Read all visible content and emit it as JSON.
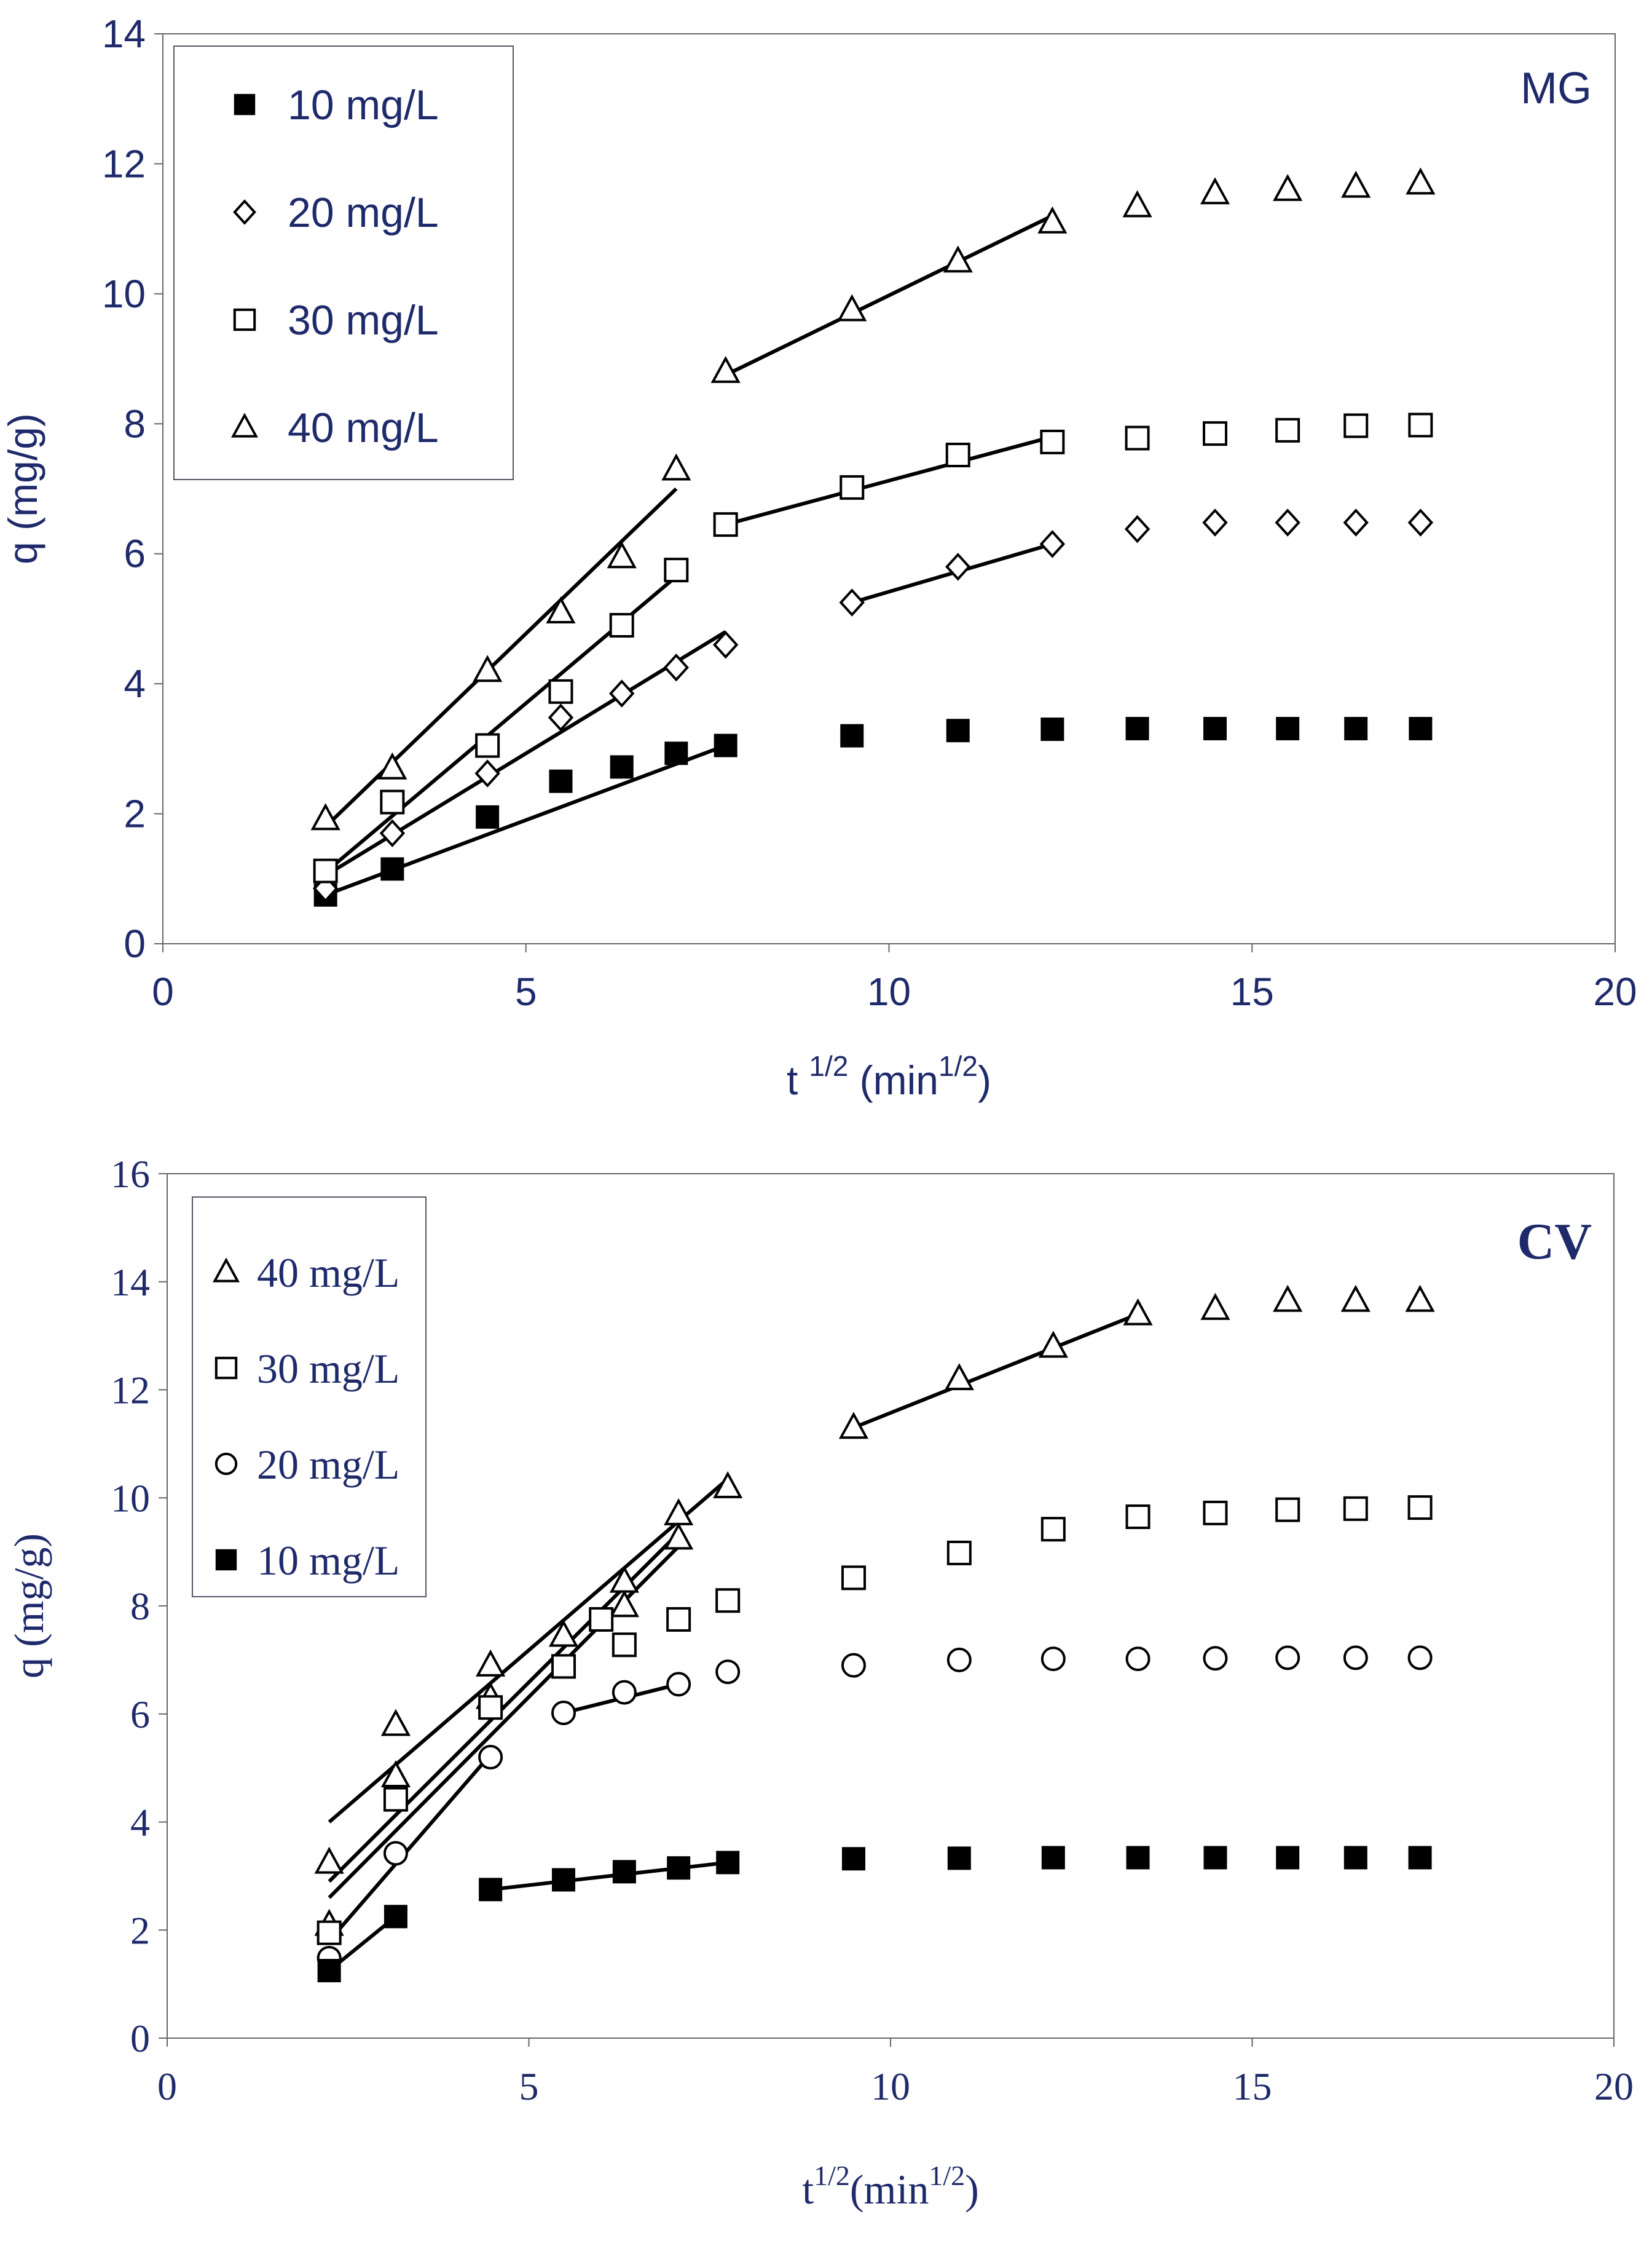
{
  "chart_data": [
    {
      "type": "scatter",
      "title": "MG",
      "xlabel_base": "t",
      "xlabel_sup": "1/2",
      "xlabel_unit": " (min",
      "xlabel_unit_sup": "1/2",
      "xlabel_close": ")",
      "ylabel": "q (mg/g)",
      "xlim": [
        0,
        20
      ],
      "ylim": [
        0,
        14
      ],
      "xticks": [
        "0",
        "5",
        "10",
        "15",
        "20"
      ],
      "yticks": [
        "0",
        "2",
        "4",
        "6",
        "8",
        "10",
        "12",
        "14"
      ],
      "legend_position": "top-left",
      "series": [
        {
          "name": "10 mg/L",
          "legend_label": "10 mg/L",
          "marker": "square-filled",
          "x": [
            2.24,
            3.16,
            4.47,
            5.48,
            6.32,
            7.07,
            7.75,
            9.49,
            10.95,
            12.25,
            13.42,
            14.49,
            15.49,
            16.43,
            17.32
          ],
          "y": [
            0.75,
            1.15,
            1.95,
            2.5,
            2.72,
            2.93,
            3.05,
            3.2,
            3.28,
            3.3,
            3.31,
            3.31,
            3.31,
            3.31,
            3.31
          ],
          "fits": [
            {
              "x": [
                2.24,
                7.75
              ],
              "y": [
                0.75,
                3.05
              ]
            }
          ]
        },
        {
          "name": "20 mg/L",
          "legend_label": "20 mg/L",
          "marker": "diamond",
          "x": [
            2.24,
            3.16,
            4.47,
            5.48,
            6.32,
            7.07,
            7.75,
            9.49,
            10.95,
            12.25,
            13.42,
            14.49,
            15.49,
            16.43,
            17.32
          ],
          "y": [
            0.85,
            1.7,
            2.62,
            3.48,
            3.85,
            4.25,
            4.6,
            5.25,
            5.8,
            6.15,
            6.38,
            6.48,
            6.48,
            6.48,
            6.48
          ],
          "fits": [
            {
              "x": [
                2.24,
                7.75
              ],
              "y": [
                1.05,
                4.8
              ]
            },
            {
              "x": [
                9.49,
                12.25
              ],
              "y": [
                5.25,
                6.15
              ]
            }
          ]
        },
        {
          "name": "30 mg/L",
          "legend_label": "30 mg/L",
          "marker": "square-open",
          "x": [
            2.24,
            3.16,
            4.47,
            5.48,
            6.32,
            7.07,
            7.75,
            9.49,
            10.95,
            12.25,
            13.42,
            14.49,
            15.49,
            16.43,
            17.32
          ],
          "y": [
            1.12,
            2.18,
            3.05,
            3.88,
            4.9,
            5.75,
            6.45,
            7.02,
            7.52,
            7.72,
            7.78,
            7.85,
            7.9,
            7.97,
            7.98
          ],
          "fits": [
            {
              "x": [
                2.24,
                7.07
              ],
              "y": [
                1.1,
                5.65
              ]
            },
            {
              "x": [
                7.75,
                12.25
              ],
              "y": [
                6.45,
                7.8
              ]
            }
          ]
        },
        {
          "name": "40 mg/L",
          "legend_label": "40 mg/L",
          "marker": "triangle",
          "x": [
            2.24,
            3.16,
            4.47,
            5.48,
            6.32,
            7.07,
            7.75,
            9.49,
            10.95,
            12.25,
            13.42,
            14.49,
            15.49,
            16.43,
            17.32
          ],
          "y": [
            1.92,
            2.7,
            4.2,
            5.1,
            5.95,
            7.3,
            8.8,
            9.75,
            10.5,
            11.1,
            11.35,
            11.55,
            11.6,
            11.65,
            11.7
          ],
          "fits": [
            {
              "x": [
                2.24,
                7.07
              ],
              "y": [
                1.8,
                7.0
              ]
            },
            {
              "x": [
                7.75,
                12.25
              ],
              "y": [
                8.75,
                11.2
              ]
            }
          ]
        }
      ],
      "legend_order": [
        0,
        1,
        2,
        3
      ]
    },
    {
      "type": "scatter",
      "title": "CV",
      "xlabel_base": "t",
      "xlabel_sup": "1/2",
      "xlabel_unit": "(min",
      "xlabel_unit_sup": "1/2",
      "xlabel_close": ")",
      "ylabel": "q (mg/g)",
      "xlim": [
        0,
        20
      ],
      "ylim": [
        0,
        16
      ],
      "xticks": [
        "0",
        "5",
        "10",
        "15",
        "20"
      ],
      "yticks": [
        "0",
        "2",
        "4",
        "6",
        "8",
        "10",
        "12",
        "14",
        "16"
      ],
      "legend_position": "top-left",
      "series": [
        {
          "name": "40 mg/L",
          "legend_label": "40 mg/L",
          "marker": "triangle",
          "x": [
            2.24,
            2.24,
            3.16,
            3.16,
            4.47,
            4.47,
            5.48,
            6.32,
            6.32,
            7.07,
            7.07,
            7.75,
            9.49,
            10.95,
            12.25,
            13.42,
            14.49,
            15.49,
            16.43,
            17.32
          ],
          "y": [
            3.25,
            2.1,
            5.8,
            4.85,
            6.9,
            6.3,
            7.45,
            8.45,
            8.0,
            9.7,
            9.25,
            10.2,
            11.3,
            12.2,
            12.8,
            13.4,
            13.5,
            13.65,
            13.65,
            13.65
          ],
          "fits": [
            {
              "x": [
                2.24,
                7.75
              ],
              "y": [
                4.0,
                10.35
              ]
            },
            {
              "x": [
                9.49,
                13.42
              ],
              "y": [
                11.3,
                13.4
              ]
            },
            {
              "x": [
                2.24,
                7.07
              ],
              "y": [
                2.9,
                9.35
              ]
            }
          ]
        },
        {
          "name": "30 mg/L",
          "legend_label": "30 mg/L",
          "marker": "square-open",
          "x": [
            2.24,
            3.16,
            4.47,
            5.48,
            6.0,
            6.32,
            7.07,
            7.75,
            9.49,
            10.95,
            12.25,
            13.42,
            14.49,
            15.49,
            16.43,
            17.32
          ],
          "y": [
            1.95,
            4.42,
            6.12,
            6.88,
            7.75,
            7.28,
            7.75,
            8.1,
            8.52,
            8.98,
            9.42,
            9.65,
            9.72,
            9.78,
            9.8,
            9.82
          ],
          "fits": [
            {
              "x": [
                2.24,
                7.07
              ],
              "y": [
                2.6,
                9.1
              ]
            }
          ]
        },
        {
          "name": "20 mg/L",
          "legend_label": "20 mg/L",
          "marker": "circle",
          "x": [
            2.24,
            3.16,
            4.47,
            5.48,
            6.32,
            7.07,
            7.75,
            9.49,
            10.95,
            12.25,
            13.42,
            14.49,
            15.49,
            16.43,
            17.32
          ],
          "y": [
            1.48,
            3.42,
            5.2,
            6.02,
            6.4,
            6.55,
            6.78,
            6.9,
            7.0,
            7.02,
            7.02,
            7.03,
            7.04,
            7.04,
            7.04
          ],
          "fits": [
            {
              "x": [
                2.24,
                4.47
              ],
              "y": [
                1.8,
                5.25
              ]
            },
            {
              "x": [
                5.48,
                7.07
              ],
              "y": [
                6.02,
                6.55
              ]
            }
          ]
        },
        {
          "name": "10 mg/L",
          "legend_label": "10 mg/L",
          "marker": "square-filled",
          "x": [
            2.24,
            3.16,
            4.47,
            5.48,
            6.32,
            7.07,
            7.75,
            9.49,
            10.95,
            12.25,
            13.42,
            14.49,
            15.49,
            16.43,
            17.32
          ],
          "y": [
            1.25,
            2.25,
            2.75,
            2.93,
            3.08,
            3.15,
            3.25,
            3.32,
            3.33,
            3.34,
            3.34,
            3.34,
            3.34,
            3.34,
            3.34
          ],
          "fits": [
            {
              "x": [
                2.24,
                3.16
              ],
              "y": [
                1.25,
                2.25
              ]
            },
            {
              "x": [
                4.47,
                7.75
              ],
              "y": [
                2.75,
                3.25
              ]
            }
          ]
        }
      ],
      "legend_order": [
        0,
        1,
        2,
        3
      ]
    }
  ]
}
